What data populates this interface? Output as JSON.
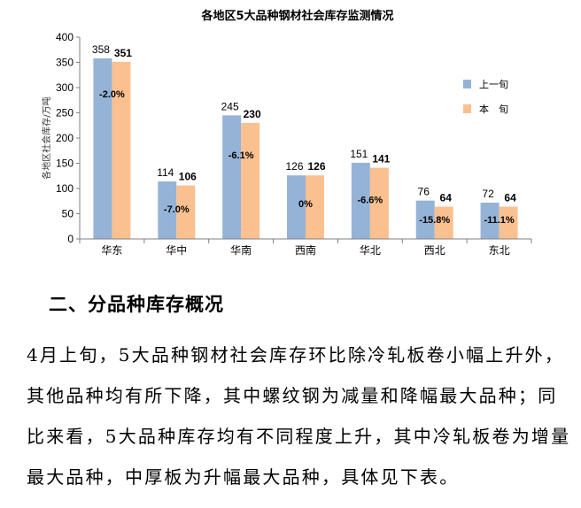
{
  "chart_data": {
    "type": "bar",
    "title": "各地区5大品种钢材社会库存监测情况",
    "ylabel": "各地区社会库存/万吨",
    "xlabel": "",
    "ylim": [
      0,
      400
    ],
    "yticks": [
      0,
      50,
      100,
      150,
      200,
      250,
      300,
      350,
      400
    ],
    "categories": [
      "华东",
      "华中",
      "华南",
      "西南",
      "华北",
      "西北",
      "东北"
    ],
    "series": [
      {
        "name": "上一旬",
        "values": [
          358,
          114,
          245,
          126,
          151,
          76,
          72
        ],
        "color": "#95B3D7"
      },
      {
        "name": "本　旬",
        "values": [
          351,
          106,
          230,
          126,
          141,
          64,
          64
        ],
        "color": "#FAC090"
      }
    ],
    "changes": [
      "-2.0%",
      "-7.0%",
      "-6.1%",
      "0%",
      "-6.6%",
      "-15.8%",
      "-11.1%"
    ],
    "legend_position": "right",
    "grid": false
  },
  "section": {
    "heading": "二、分品种库存概况"
  },
  "paragraph": {
    "text": "4月上旬，5大品种钢材社会库存环比除冷轧板卷小幅上升外，其他品种均有所下降，其中螺纹钢为减量和降幅最大品种；同比来看，5大品种库存均有不同程度上升，其中冷轧板卷为增量最大品种，中厚板为升幅最大品种，具体见下表。"
  }
}
